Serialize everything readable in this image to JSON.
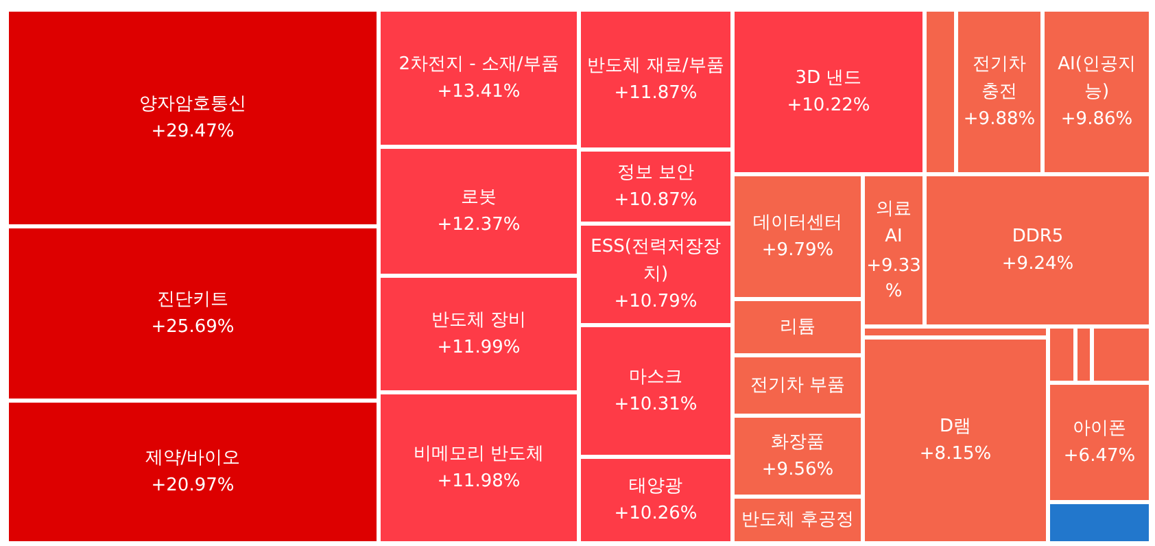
{
  "chart_data": {
    "type": "other",
    "categories": [
      "양자암호통신",
      "진단키트",
      "제약/바이오",
      "2차전지 - 소재/부품",
      "로봇",
      "반도체 장비",
      "비메모리 반도체",
      "반도체 재료/부품",
      "정보 보안",
      "ESS(전력저장장치)",
      "마스크",
      "태양광",
      "3D 낸드",
      null,
      "전기차 충전",
      "AI(인공지능)",
      "데이터센터",
      "의료 AI",
      "DDR5",
      "리튬",
      "전기차 부품",
      "화장품",
      "반도체 후공정",
      null,
      "D램",
      null,
      null,
      null,
      "아이폰",
      null
    ],
    "values": [
      29.47,
      25.69,
      20.97,
      13.41,
      12.37,
      11.99,
      11.98,
      11.87,
      10.87,
      10.79,
      10.31,
      10.26,
      10.22,
      null,
      9.88,
      9.86,
      9.79,
      9.33,
      9.24,
      null,
      null,
      9.56,
      null,
      null,
      8.15,
      null,
      null,
      null,
      6.47,
      null
    ],
    "value_labels": [
      "+29.47%",
      "+25.69%",
      "+20.97%",
      "+13.41%",
      "+12.37%",
      "+11.99%",
      "+11.98%",
      "+11.87%",
      "+10.87%",
      "+10.79%",
      "+10.31%",
      "+10.26%",
      "+10.22%",
      null,
      "+9.88%",
      "+9.86%",
      "+9.79%",
      "+9.33%",
      "+9.24%",
      null,
      null,
      "+9.56%",
      null,
      null,
      "+8.15%",
      null,
      null,
      null,
      "+6.47%",
      null
    ],
    "colors": [
      "#dd0000",
      "#dd0000",
      "#dd0000",
      "#fe3b47",
      "#fe3b47",
      "#fe3b47",
      "#fe3b47",
      "#fe3b47",
      "#fe3b47",
      "#fe3b47",
      "#fe3b47",
      "#fe3b47",
      "#fe3b47",
      "#f4654b",
      "#f4654b",
      "#f4654b",
      "#f4654b",
      "#f4654b",
      "#f4654b",
      "#f4654b",
      "#f4654b",
      "#f4654b",
      "#f4654b",
      "#f4654b",
      "#f4654b",
      "#f4654b",
      "#f4654b",
      "#f4654b",
      "#f4654b",
      "#2277cc"
    ]
  }
}
